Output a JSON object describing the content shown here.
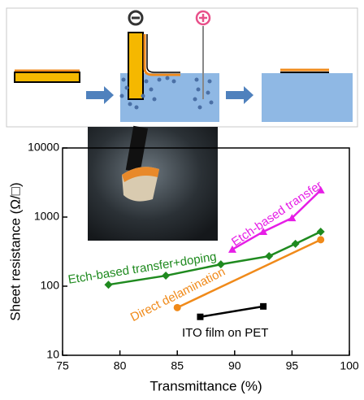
{
  "chart_data": {
    "type": "line",
    "xlabel": "Transmittance (%)",
    "ylabel": "Sheet resistance (Ω/□)",
    "xlim": [
      75,
      100
    ],
    "xticks": [
      75,
      80,
      85,
      90,
      95,
      100
    ],
    "ylim": [
      10,
      10000
    ],
    "yticks": [
      10,
      100,
      1000,
      10000
    ],
    "yscale": "log",
    "series": [
      {
        "name": "Etch-based transfer+doping",
        "color": "#1f8a1f",
        "marker": "diamond",
        "x": [
          79,
          84,
          88.8,
          93,
          95.3,
          97.5
        ],
        "values": [
          105,
          142,
          207,
          272,
          410,
          615
        ]
      },
      {
        "name": "Etch-based transfer",
        "color": "#e61ee6",
        "marker": "triangle",
        "x": [
          89.8,
          92.5,
          95,
          97.5
        ],
        "values": [
          340,
          615,
          970,
          2450
        ]
      },
      {
        "name": "Direct delamination",
        "color": "#f08a1a",
        "marker": "circle",
        "x": [
          85,
          97.5
        ],
        "values": [
          49,
          470
        ]
      },
      {
        "name": "ITO film on PET",
        "color": "#000000",
        "marker": "square",
        "x": [
          87,
          92.5
        ],
        "values": [
          36,
          51
        ]
      }
    ]
  }
}
